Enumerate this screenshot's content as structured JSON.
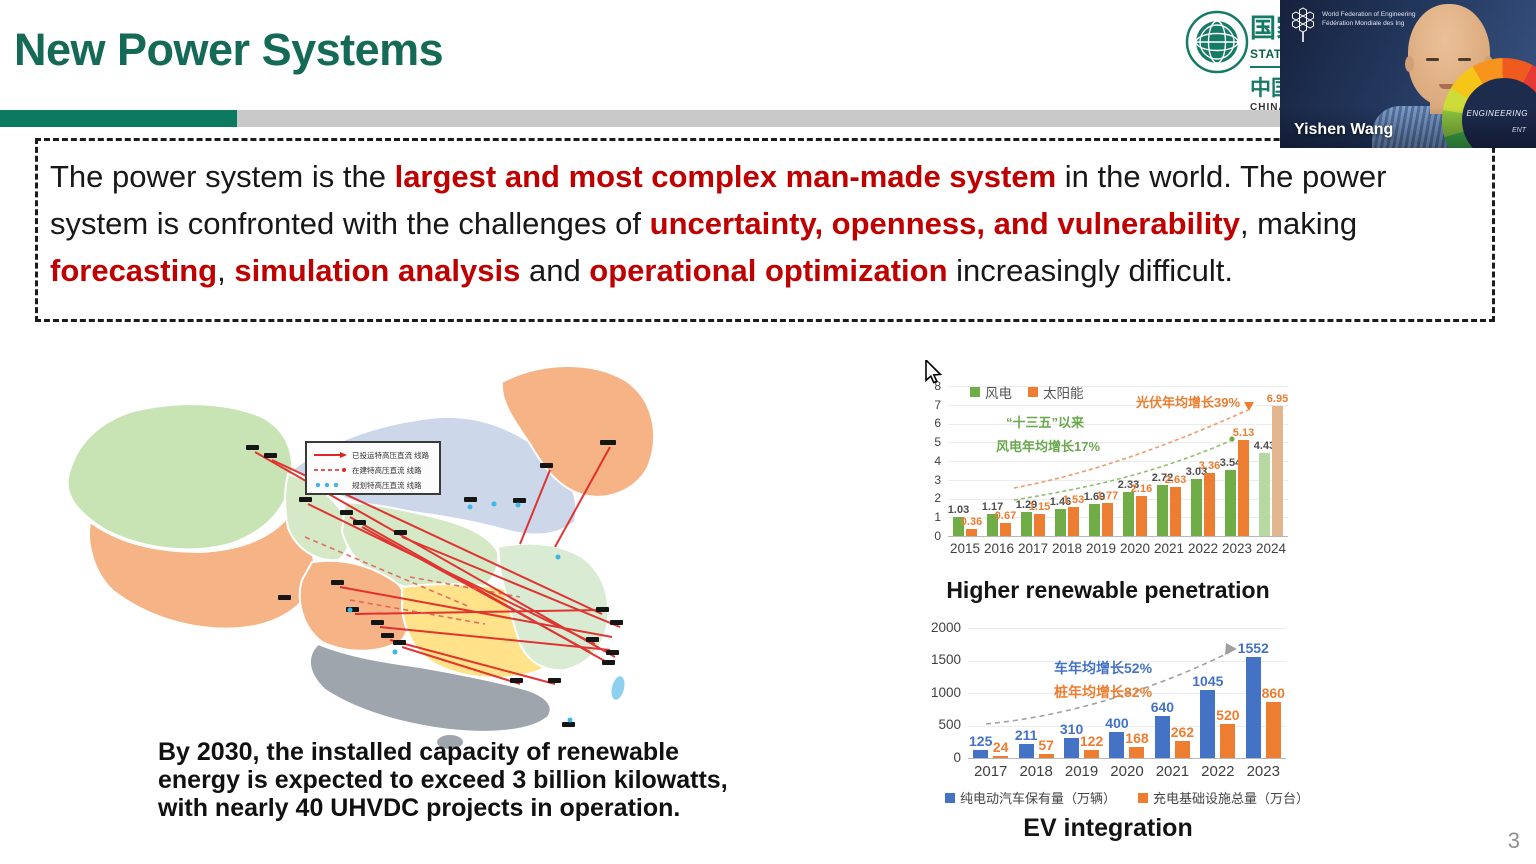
{
  "slide": {
    "title": "New Power Systems",
    "page_number": "3"
  },
  "logo": {
    "zh1": "国家电网",
    "en1": "STATE GRID",
    "zh2": "中国",
    "en2": "CHINA"
  },
  "webcam": {
    "name": "Yishen Wang",
    "org_line1": "World Federation of Engineering",
    "org_line2": "Fédération Mondiale des Ing",
    "badge_line1": "ENGINEERING",
    "badge_line2": "ENT"
  },
  "intro": {
    "segments": [
      {
        "t": "The power system is the ",
        "red": false
      },
      {
        "t": "largest and most complex man-made system",
        "red": true
      },
      {
        "t": " in the world. The power system is confronted with the challenges of ",
        "red": false
      },
      {
        "t": "uncertainty, openness, and vulnerability",
        "red": true
      },
      {
        "t": ", making ",
        "red": false
      },
      {
        "t": "forecasting",
        "red": true
      },
      {
        "t": ", ",
        "red": false
      },
      {
        "t": "simulation analysis",
        "red": true
      },
      {
        "t": " and ",
        "red": false
      },
      {
        "t": "operational optimization",
        "red": true
      },
      {
        "t": " increasingly difficult.",
        "red": false
      }
    ]
  },
  "map": {
    "legend": [
      {
        "label": "已投运特高压直流 线路"
      },
      {
        "label": "在建特高压直流 线路"
      },
      {
        "label": "规划特高压直流 线路"
      }
    ],
    "caption_lines": [
      "By 2030, the installed capacity of renewable",
      "energy is expected to exceed 3 billion kilowatts,",
      "with nearly 40 UHVDC projects in operation."
    ]
  },
  "chart_data": [
    {
      "id": "renewables",
      "type": "bar",
      "title": "Higher renewable penetration",
      "categories": [
        "2015",
        "2016",
        "2017",
        "2018",
        "2019",
        "2020",
        "2021",
        "2022",
        "2023",
        "2024"
      ],
      "series": [
        {
          "name": "风电",
          "color": "#70ad47",
          "fade_color": "#b7d7a3",
          "label_color": "#4d4d4d",
          "values": [
            1.03,
            1.17,
            1.29,
            1.46,
            1.69,
            2.33,
            2.72,
            3.03,
            3.54,
            4.43
          ]
        },
        {
          "name": "太阳能",
          "color": "#ed7d31",
          "fade_color": "#e2b68e",
          "label_color": "#ed7d31",
          "values": [
            0.36,
            0.67,
            1.15,
            1.53,
            1.77,
            2.16,
            2.63,
            3.36,
            5.13,
            6.95
          ]
        }
      ],
      "ylim": [
        0,
        8
      ],
      "yticks": [
        0,
        1,
        2,
        3,
        4,
        5,
        6,
        7,
        8
      ],
      "fade_last_category": true,
      "legend_position": "top-left",
      "annotations": [
        {
          "text": "“十三五”以来",
          "x": 58,
          "y": 26,
          "color": "#6aa84f"
        },
        {
          "text": "风电年均增长17%",
          "x": 48,
          "y": 50,
          "color": "#6aa84f"
        },
        {
          "text": "光伏年均增长39%",
          "x": 188,
          "y": 6,
          "color": "#ed7d31"
        }
      ]
    },
    {
      "id": "ev",
      "type": "bar",
      "title": "EV integration",
      "categories": [
        "2017",
        "2018",
        "2019",
        "2020",
        "2021",
        "2022",
        "2023"
      ],
      "series": [
        {
          "name": "纯电动汽车保有量（万辆）",
          "color": "#4472c4",
          "label_color": "#4472c4",
          "values": [
            125,
            211,
            310,
            400,
            640,
            1045,
            1552
          ]
        },
        {
          "name": "充电基础设施总量（万台）",
          "color": "#ed7d31",
          "label_color": "#ed7d31",
          "values": [
            24,
            57,
            122,
            168,
            262,
            520,
            860
          ]
        }
      ],
      "ylim": [
        0,
        2000
      ],
      "yticks": [
        0,
        500,
        1000,
        1500,
        2000
      ],
      "legend_position": "bottom",
      "annotations": [
        {
          "text": "车年均增长52%",
          "x": 86,
          "y": 30,
          "color": "#4472c4"
        },
        {
          "text": "桩年均增长82%",
          "x": 86,
          "y": 54,
          "color": "#ed7d31"
        }
      ]
    }
  ]
}
